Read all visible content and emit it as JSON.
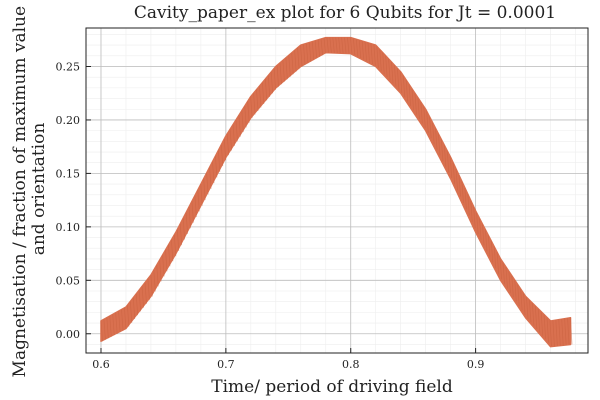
{
  "chart_data": {
    "type": "line",
    "title": "Cavity_paper_ex plot for 6 Qubits for Jt = 0.0001",
    "xlabel": "Time/ period of driving field",
    "ylabel_lines": [
      "Magnetisation / fraction of maximum value",
      "and orientation"
    ],
    "xlim": [
      0.588,
      0.99
    ],
    "ylim": [
      -0.018,
      0.286
    ],
    "xticks": [
      {
        "value": 0.6,
        "label": "0.6"
      },
      {
        "value": 0.7,
        "label": "0.7"
      },
      {
        "value": 0.8,
        "label": "0.8"
      },
      {
        "value": 0.9,
        "label": "0.9"
      }
    ],
    "yticks": [
      {
        "value": 0.0,
        "label": "0.00"
      },
      {
        "value": 0.05,
        "label": "0.05"
      },
      {
        "value": 0.1,
        "label": "0.10"
      },
      {
        "value": 0.15,
        "label": "0.15"
      },
      {
        "value": 0.2,
        "label": "0.20"
      },
      {
        "value": 0.25,
        "label": "0.25"
      }
    ],
    "grid": true,
    "minor_grid": true,
    "legend": "none",
    "series": [
      {
        "color": "#d9704f",
        "band": "oscillating band of width about 0.01 around the centre curve",
        "x": [
          0.6,
          0.62,
          0.64,
          0.66,
          0.68,
          0.7,
          0.72,
          0.74,
          0.76,
          0.78,
          0.8,
          0.82,
          0.84,
          0.86,
          0.88,
          0.9,
          0.92,
          0.94,
          0.96,
          0.976
        ],
        "y": [
          0.003,
          0.015,
          0.045,
          0.085,
          0.13,
          0.175,
          0.212,
          0.24,
          0.26,
          0.27,
          0.27,
          0.26,
          0.235,
          0.2,
          0.155,
          0.105,
          0.06,
          0.025,
          0.003,
          0.003
        ],
        "y_lower": [
          -0.007,
          0.005,
          0.035,
          0.075,
          0.12,
          0.165,
          0.202,
          0.23,
          0.25,
          0.263,
          0.262,
          0.25,
          0.225,
          0.19,
          0.145,
          0.095,
          0.05,
          0.015,
          -0.012,
          -0.01
        ],
        "y_upper": [
          0.012,
          0.025,
          0.055,
          0.095,
          0.14,
          0.185,
          0.222,
          0.25,
          0.27,
          0.277,
          0.277,
          0.27,
          0.245,
          0.21,
          0.165,
          0.115,
          0.07,
          0.035,
          0.012,
          0.015
        ]
      }
    ]
  }
}
